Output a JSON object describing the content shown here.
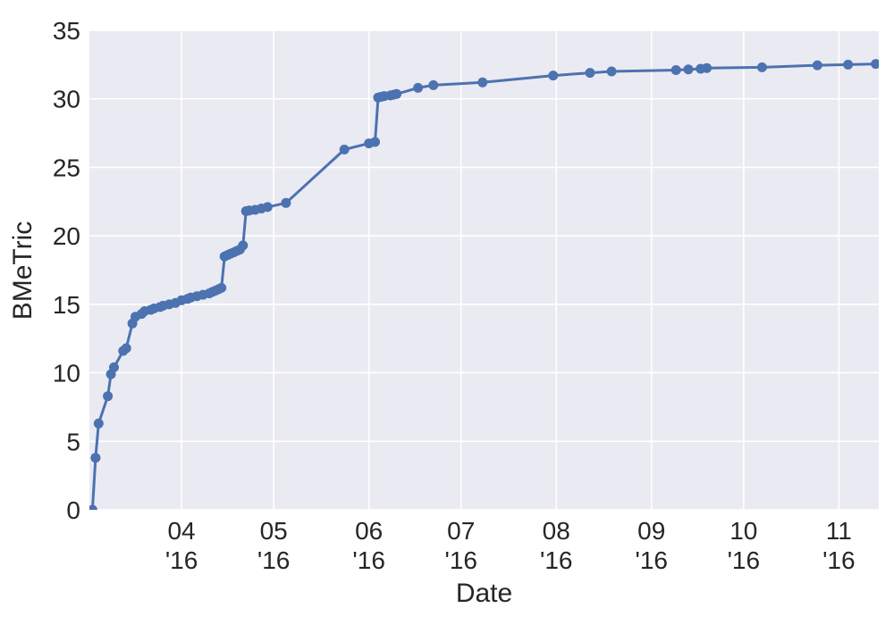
{
  "chart_data": {
    "type": "line",
    "title": "",
    "xlabel": "Date",
    "ylabel": "BMeTric",
    "legend": null,
    "grid": true,
    "x_axis": {
      "kind": "date",
      "range": [
        "2016-03-02",
        "2016-11-14"
      ],
      "ticks": [
        {
          "date": "2016-04-01",
          "month": "04",
          "year": "'16"
        },
        {
          "date": "2016-05-01",
          "month": "05",
          "year": "'16"
        },
        {
          "date": "2016-06-01",
          "month": "06",
          "year": "'16"
        },
        {
          "date": "2016-07-01",
          "month": "07",
          "year": "'16"
        },
        {
          "date": "2016-08-01",
          "month": "08",
          "year": "'16"
        },
        {
          "date": "2016-09-01",
          "month": "09",
          "year": "'16"
        },
        {
          "date": "2016-10-01",
          "month": "10",
          "year": "'16"
        },
        {
          "date": "2016-11-01",
          "month": "11",
          "year": "'16"
        }
      ]
    },
    "y_axis": {
      "lim": [
        0,
        35
      ],
      "ticks": [
        0,
        5,
        10,
        15,
        20,
        25,
        30,
        35
      ]
    },
    "style": {
      "line_color": "#4c72b0",
      "marker": "circle",
      "marker_radius": 5.5,
      "line_width": 3,
      "plot_bg": "#eaeaf2",
      "grid_color": "#ffffff",
      "text_color": "#262626",
      "figure_bg": "#ffffff"
    },
    "series": [
      {
        "name": "BMeTric",
        "points": [
          [
            "2016-03-03",
            0.0
          ],
          [
            "2016-03-04",
            3.8
          ],
          [
            "2016-03-05",
            6.3
          ],
          [
            "2016-03-08",
            8.3
          ],
          [
            "2016-03-09",
            9.9
          ],
          [
            "2016-03-10",
            10.4
          ],
          [
            "2016-03-13",
            11.6
          ],
          [
            "2016-03-14",
            11.8
          ],
          [
            "2016-03-16",
            13.6
          ],
          [
            "2016-03-17",
            14.1
          ],
          [
            "2016-03-19",
            14.3
          ],
          [
            "2016-03-20",
            14.5
          ],
          [
            "2016-03-22",
            14.6
          ],
          [
            "2016-03-23",
            14.7
          ],
          [
            "2016-03-25",
            14.8
          ],
          [
            "2016-03-26",
            14.9
          ],
          [
            "2016-03-28",
            15.0
          ],
          [
            "2016-03-30",
            15.1
          ],
          [
            "2016-04-01",
            15.3
          ],
          [
            "2016-04-03",
            15.4
          ],
          [
            "2016-04-04",
            15.5
          ],
          [
            "2016-04-06",
            15.6
          ],
          [
            "2016-04-08",
            15.7
          ],
          [
            "2016-04-10",
            15.8
          ],
          [
            "2016-04-11",
            15.9
          ],
          [
            "2016-04-12",
            16.0
          ],
          [
            "2016-04-13",
            16.1
          ],
          [
            "2016-04-14",
            16.2
          ],
          [
            "2016-04-15",
            18.5
          ],
          [
            "2016-04-16",
            18.6
          ],
          [
            "2016-04-17",
            18.7
          ],
          [
            "2016-04-18",
            18.8
          ],
          [
            "2016-04-19",
            18.9
          ],
          [
            "2016-04-20",
            19.0
          ],
          [
            "2016-04-21",
            19.3
          ],
          [
            "2016-04-22",
            21.8
          ],
          [
            "2016-04-23",
            21.85
          ],
          [
            "2016-04-25",
            21.9
          ],
          [
            "2016-04-27",
            22.0
          ],
          [
            "2016-04-29",
            22.1
          ],
          [
            "2016-05-05",
            22.4
          ],
          [
            "2016-05-24",
            26.3
          ],
          [
            "2016-06-01",
            26.75
          ],
          [
            "2016-06-03",
            26.85
          ],
          [
            "2016-06-04",
            30.1
          ],
          [
            "2016-06-05",
            30.15
          ],
          [
            "2016-06-06",
            30.2
          ],
          [
            "2016-06-08",
            30.25
          ],
          [
            "2016-06-09",
            30.3
          ],
          [
            "2016-06-10",
            30.35
          ],
          [
            "2016-06-17",
            30.8
          ],
          [
            "2016-06-22",
            31.0
          ],
          [
            "2016-07-08",
            31.2
          ],
          [
            "2016-07-31",
            31.7
          ],
          [
            "2016-08-12",
            31.9
          ],
          [
            "2016-08-19",
            32.0
          ],
          [
            "2016-09-09",
            32.1
          ],
          [
            "2016-09-13",
            32.15
          ],
          [
            "2016-09-17",
            32.2
          ],
          [
            "2016-09-19",
            32.25
          ],
          [
            "2016-10-07",
            32.3
          ],
          [
            "2016-10-25",
            32.45
          ],
          [
            "2016-11-04",
            32.5
          ],
          [
            "2016-11-13",
            32.55
          ]
        ]
      }
    ]
  }
}
